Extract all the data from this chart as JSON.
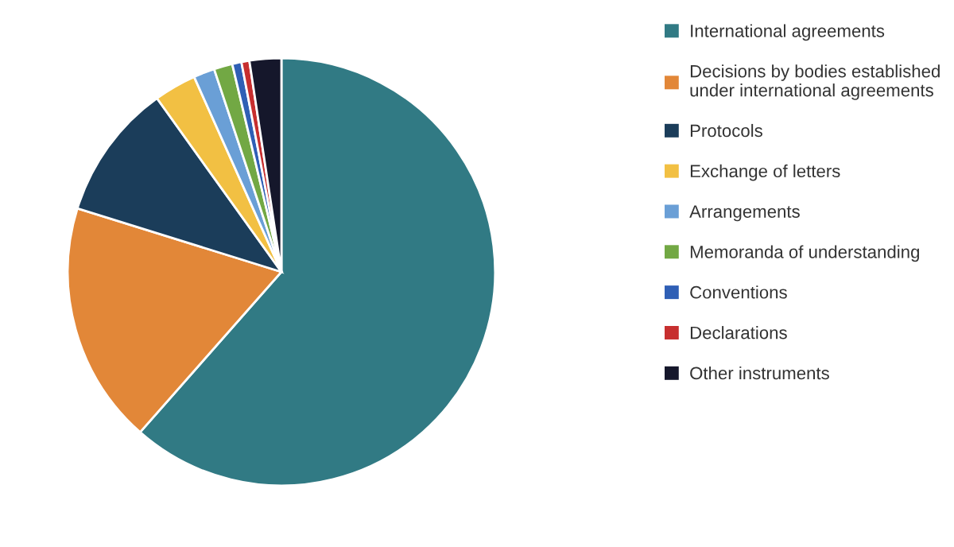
{
  "chart_data": {
    "type": "pie",
    "categories": [
      "International agreements",
      "Decisions by bodies established under international agreements",
      "Protocols",
      "Exchange of letters",
      "Arrangements",
      "Memoranda of understanding",
      "Conventions",
      "Declarations",
      "Other instruments"
    ],
    "values": [
      61.5,
      18.3,
      10.3,
      3.2,
      1.6,
      1.4,
      0.7,
      0.6,
      2.4
    ],
    "colors": [
      "#317a84",
      "#e28738",
      "#1b3d5a",
      "#f2c043",
      "#6a9fd6",
      "#72a844",
      "#2f5fb5",
      "#c72f2f",
      "#15172b"
    ],
    "legend": "right"
  }
}
